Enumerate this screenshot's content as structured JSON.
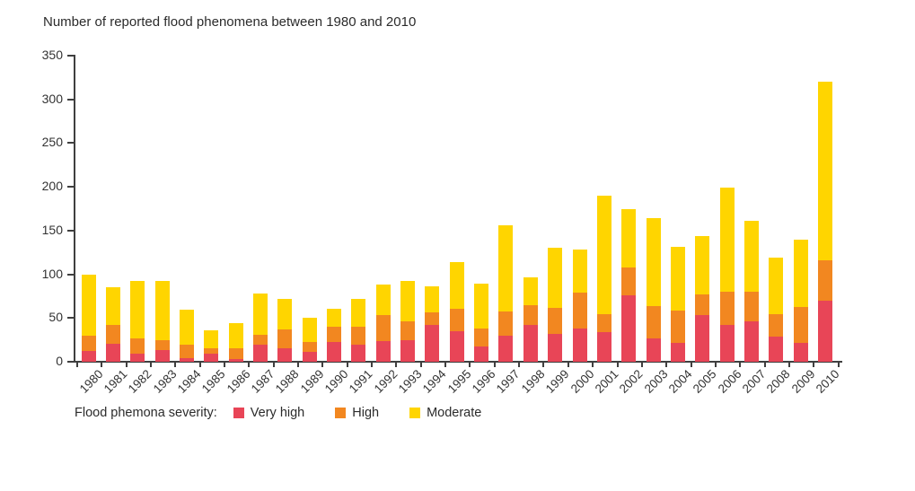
{
  "title": "Number of reported flood phenomena between 1980 and 2010",
  "legend": {
    "label": "Flood phemona severity:",
    "items": [
      {
        "name": "Very high",
        "color": "#e84557"
      },
      {
        "name": "High",
        "color": "#f28720"
      },
      {
        "name": "Moderate",
        "color": "#ffd500"
      }
    ]
  },
  "colors": {
    "very_high": "#e84557",
    "high": "#f28720",
    "moderate": "#ffd500",
    "axis": "#3f3f3f",
    "text": "#333333"
  },
  "chart_data": {
    "type": "bar",
    "stacked": true,
    "title": "Number of reported flood phenomena between 1980 and 2010",
    "categories": [
      "1980",
      "1981",
      "1982",
      "1983",
      "1984",
      "1985",
      "1986",
      "1987",
      "1988",
      "1989",
      "1990",
      "1991",
      "1992",
      "1993",
      "1994",
      "1995",
      "1996",
      "1997",
      "1998",
      "1999",
      "2000",
      "2001",
      "2002",
      "2003",
      "2004",
      "2005",
      "2006",
      "2007",
      "2008",
      "2009",
      "2010"
    ],
    "series": [
      {
        "name": "Very high",
        "color": "#e84557",
        "values": [
          12,
          21,
          9,
          13,
          4,
          9,
          3,
          20,
          15,
          11,
          23,
          20,
          24,
          25,
          42,
          35,
          17,
          30,
          42,
          32,
          38,
          34,
          76,
          27,
          22,
          53,
          42,
          46,
          29,
          22,
          70
        ]
      },
      {
        "name": "High",
        "color": "#f28720",
        "values": [
          18,
          21,
          18,
          12,
          15,
          6,
          12,
          11,
          22,
          12,
          17,
          20,
          29,
          21,
          14,
          26,
          21,
          27,
          23,
          30,
          41,
          20,
          32,
          37,
          36,
          24,
          38,
          34,
          25,
          41,
          46
        ]
      },
      {
        "name": "Moderate",
        "color": "#ffd500",
        "values": [
          70,
          43,
          65,
          67,
          41,
          21,
          29,
          47,
          35,
          27,
          21,
          32,
          35,
          46,
          30,
          53,
          51,
          99,
          31,
          68,
          49,
          136,
          66,
          100,
          73,
          67,
          119,
          81,
          65,
          77,
          204
        ]
      }
    ],
    "totals": [
      100,
      85,
      92,
      92,
      60,
      36,
      44,
      78,
      72,
      50,
      61,
      72,
      88,
      92,
      86,
      114,
      89,
      156,
      96,
      130,
      128,
      190,
      174,
      164,
      131,
      144,
      199,
      161,
      119,
      140,
      320
    ],
    "xlabel": "",
    "ylabel": "",
    "ylim": [
      0,
      350
    ],
    "yticks": [
      0,
      50,
      100,
      150,
      200,
      250,
      300,
      350
    ],
    "grid": false,
    "legend_position": "bottom"
  }
}
